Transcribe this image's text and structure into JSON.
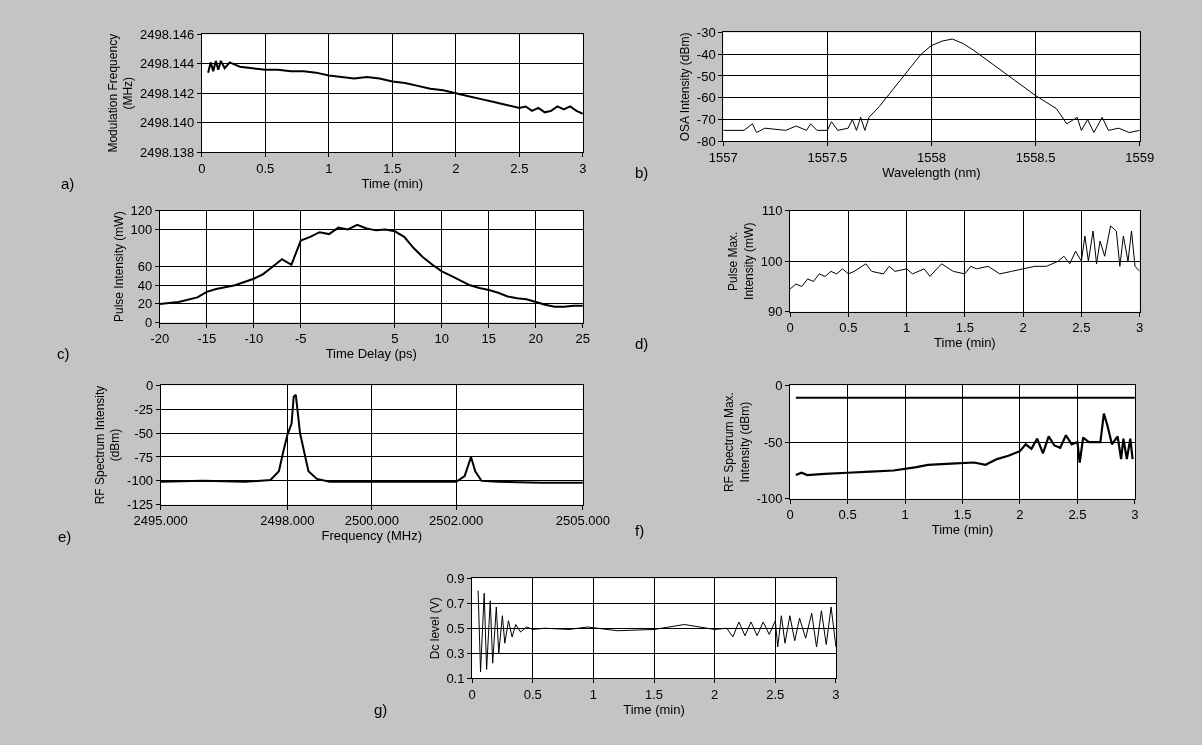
{
  "chart_data": [
    {
      "type": "line",
      "xlabel": "Time (min)",
      "ylabel": "Modulation Frequency\n(MHz)",
      "annotations": [
        "a)"
      ],
      "grid": true,
      "color": "#000000",
      "x": [
        0.05,
        0.07,
        0.09,
        0.11,
        0.13,
        0.15,
        0.18,
        0.22,
        0.3,
        0.4,
        0.5,
        0.6,
        0.7,
        0.8,
        0.9,
        1.0,
        1.1,
        1.2,
        1.3,
        1.4,
        1.5,
        1.6,
        1.7,
        1.8,
        1.9,
        2.0,
        2.1,
        2.2,
        2.3,
        2.4,
        2.5,
        2.55,
        2.6,
        2.65,
        2.7,
        2.75,
        2.8,
        2.85,
        2.9,
        2.95,
        3
      ],
      "values": [
        2498.1434,
        2498.1441,
        2498.1435,
        2498.1442,
        2498.1436,
        2498.1442,
        2498.1437,
        2498.1441,
        2498.1438,
        2498.1437,
        2498.1436,
        2498.1436,
        2498.1435,
        2498.1435,
        2498.1434,
        2498.1432,
        2498.1431,
        2498.143,
        2498.1431,
        2498.143,
        2498.1428,
        2498.1427,
        2498.1425,
        2498.1423,
        2498.1422,
        2498.142,
        2498.1418,
        2498.1416,
        2498.1414,
        2498.1412,
        2498.141,
        2498.1411,
        2498.1408,
        2498.141,
        2498.1407,
        2498.1408,
        2498.1411,
        2498.1409,
        2498.1411,
        2498.1408,
        2498.1406
      ],
      "xlim": [
        0,
        3
      ],
      "xticks": [
        0,
        0.5,
        1,
        1.5,
        2,
        2.5,
        3
      ],
      "ylim": [
        2498.138,
        2498.146
      ],
      "yticks": [
        2498.138,
        {
          "value": 2498.14,
          "label": "2498.140"
        },
        2498.142,
        2498.144,
        2498.146
      ]
    },
    {
      "type": "line",
      "xlabel": "Wavelength (nm)",
      "ylabel": "OSA Intensity (dBm)",
      "annotations": [
        "b)"
      ],
      "grid": true,
      "color": "#000000",
      "x": [
        1557,
        1557.1,
        1557.14,
        1557.16,
        1557.2,
        1557.3,
        1557.35,
        1557.4,
        1557.42,
        1557.45,
        1557.5,
        1557.52,
        1557.55,
        1557.6,
        1557.62,
        1557.64,
        1557.66,
        1557.68,
        1557.7,
        1557.75,
        1557.8,
        1557.85,
        1557.9,
        1557.95,
        1558,
        1558.05,
        1558.1,
        1558.15,
        1558.2,
        1558.3,
        1558.4,
        1558.5,
        1558.6,
        1558.65,
        1558.7,
        1558.72,
        1558.75,
        1558.78,
        1558.82,
        1558.85,
        1558.9,
        1558.95,
        1559
      ],
      "values": [
        -75,
        -75,
        -72,
        -76,
        -74,
        -75,
        -73,
        -75,
        -72,
        -75,
        -75,
        -71,
        -75,
        -74,
        -70,
        -75,
        -69,
        -75,
        -69,
        -64,
        -58,
        -52,
        -46,
        -40,
        -36,
        -34,
        -33,
        -35,
        -38,
        -45,
        -52,
        -59,
        -65,
        -72,
        -69,
        -75,
        -70,
        -76,
        -69,
        -75,
        -74,
        -76,
        -75
      ],
      "xlim": [
        1557,
        1559
      ],
      "xticks": [
        1557,
        1557.5,
        1558,
        1558.5,
        1559
      ],
      "ylim": [
        -80,
        -30
      ],
      "yticks": [
        -80,
        -70,
        -60,
        -50,
        -40,
        -30
      ]
    },
    {
      "type": "line",
      "xlabel": "Time Delay (ps)",
      "ylabel": "Pulse Intensity (mW)",
      "annotations": [
        "c)"
      ],
      "grid": true,
      "color": "#000000",
      "x": [
        -20,
        -18,
        -16,
        -15,
        -14,
        -12,
        -10,
        -9,
        -8,
        -7,
        -6,
        -5,
        -4,
        -3,
        -2,
        -1,
        0,
        1,
        2,
        3,
        4,
        5,
        6,
        7,
        8,
        9,
        10,
        11,
        12,
        13,
        14,
        15,
        16,
        17,
        18,
        19,
        20,
        21,
        22,
        23,
        24,
        25
      ],
      "values": [
        20,
        22,
        27,
        33,
        36,
        40,
        47,
        52,
        60,
        68,
        62,
        88,
        92,
        97,
        95,
        102,
        100,
        105,
        101,
        99,
        100,
        98,
        92,
        80,
        70,
        62,
        55,
        50,
        45,
        40,
        37,
        35,
        32,
        28,
        26,
        25,
        22,
        19,
        17,
        17,
        18,
        18
      ],
      "xlim": [
        -20,
        25
      ],
      "xticks": [
        -20,
        -15,
        -10,
        -5,
        5,
        10,
        15,
        20,
        25
      ],
      "ylim": [
        0,
        120
      ],
      "yticks": [
        0,
        20,
        40,
        60,
        100,
        120
      ]
    },
    {
      "type": "line",
      "xlabel": "Time (min)",
      "ylabel": "Pulse Max.\nIntensity (mW)",
      "annotations": [
        "d)"
      ],
      "grid": true,
      "color": "#000000",
      "x": [
        0,
        0.05,
        0.1,
        0.15,
        0.2,
        0.25,
        0.3,
        0.35,
        0.4,
        0.45,
        0.5,
        0.55,
        0.65,
        0.7,
        0.8,
        0.85,
        0.9,
        1.0,
        1.05,
        1.15,
        1.2,
        1.3,
        1.4,
        1.5,
        1.55,
        1.6,
        1.7,
        1.8,
        1.9,
        2.0,
        2.1,
        2.2,
        2.3,
        2.35,
        2.4,
        2.45,
        2.5,
        2.53,
        2.56,
        2.6,
        2.63,
        2.66,
        2.7,
        2.75,
        2.8,
        2.83,
        2.86,
        2.9,
        2.93,
        2.96,
        3
      ],
      "values": [
        94.5,
        95.5,
        95,
        96.5,
        96,
        97.5,
        97,
        98,
        97.5,
        98.5,
        97.5,
        98,
        99.5,
        98,
        97.5,
        99,
        98,
        98.5,
        97.5,
        98.5,
        97,
        99.5,
        98,
        97.5,
        99,
        98.5,
        99,
        97.5,
        98,
        98.5,
        99,
        99,
        100,
        101,
        99.5,
        102,
        100,
        105,
        100,
        106,
        99.5,
        104,
        101,
        107,
        106,
        99,
        105,
        100,
        106,
        99,
        98
      ],
      "xlim": [
        0,
        3
      ],
      "xticks": [
        0,
        0.5,
        1,
        1.5,
        2,
        2.5,
        3
      ],
      "ylim": [
        90,
        110
      ],
      "yticks": [
        90,
        100,
        110
      ]
    },
    {
      "type": "line",
      "xlabel": "Frequency (MHz)",
      "ylabel": "RF Spectrum Intensity\n(dBm)",
      "annotations": [
        "e)"
      ],
      "grid": true,
      "color": "#000000",
      "x": [
        2495,
        2496,
        2497,
        2497.6,
        2497.8,
        2497.9,
        2498,
        2498.1,
        2498.15,
        2498.2,
        2498.25,
        2498.3,
        2498.4,
        2498.5,
        2498.7,
        2499,
        2500,
        2501,
        2502,
        2502.2,
        2502.35,
        2502.45,
        2502.6,
        2503,
        2504,
        2505
      ],
      "values": [
        -101,
        -100,
        -101,
        -99,
        -90,
        -70,
        -52,
        -40,
        -12,
        -10,
        -30,
        -50,
        -70,
        -90,
        -98,
        -101,
        -101,
        -101,
        -101,
        -95,
        -75,
        -90,
        -100,
        -101,
        -102,
        -102
      ],
      "xlim": [
        2495,
        2505
      ],
      "xticks": [
        {
          "value": 2495,
          "label": "2495.000"
        },
        {
          "value": 2498,
          "label": "2498.000"
        },
        {
          "value": 2500,
          "label": "2500.000"
        },
        {
          "value": 2502,
          "label": "2502.000"
        },
        {
          "value": 2505,
          "label": "2505.000"
        }
      ],
      "ylim": [
        -125,
        0
      ],
      "yticks": [
        -125,
        -100,
        -75,
        -50,
        -25,
        0
      ]
    },
    {
      "type": "line",
      "xlabel": "Time (min)",
      "ylabel": "RF Spectrum Max.\nIntensity (dBm)",
      "annotations": [
        "f)"
      ],
      "grid": true,
      "series": [
        {
          "color": "#000000",
          "x": [
            0.05,
            0.1,
            0.15,
            0.3,
            0.5,
            0.7,
            0.9,
            1.1,
            1.2,
            1.4,
            1.6,
            1.7,
            1.8,
            1.9,
            2.0,
            2.05,
            2.1,
            2.15,
            2.2,
            2.25,
            2.3,
            2.35,
            2.4,
            2.45,
            2.5,
            2.52,
            2.55,
            2.6,
            2.65,
            2.7,
            2.73,
            2.76,
            2.8,
            2.85,
            2.88,
            2.9,
            2.93,
            2.96,
            2.98
          ],
          "values": [
            -79,
            -77,
            -79,
            -78,
            -77,
            -76,
            -75,
            -72,
            -70,
            -69,
            -68,
            -70,
            -65,
            -62,
            -58,
            -52,
            -56,
            -47,
            -60,
            -45,
            -53,
            -55,
            -44,
            -52,
            -50,
            -68,
            -46,
            -50,
            -50,
            -50,
            -25,
            -35,
            -52,
            -45,
            -65,
            -47,
            -65,
            -47,
            -65
          ]
        },
        {
          "color": "#000000",
          "x": [
            0.05,
            3
          ],
          "values": [
            -11,
            -11
          ]
        }
      ],
      "xlim": [
        0,
        3
      ],
      "xticks": [
        0,
        0.5,
        1,
        1.5,
        2,
        2.5,
        3
      ],
      "ylim": [
        -100,
        0
      ],
      "yticks": [
        -100,
        -50,
        0
      ]
    },
    {
      "type": "line",
      "xlabel": "Time (min)",
      "ylabel": "Dc level (V)",
      "annotations": [
        "g)"
      ],
      "grid": true,
      "color": "#000000",
      "x": [
        0.05,
        0.07,
        0.1,
        0.12,
        0.15,
        0.17,
        0.2,
        0.22,
        0.25,
        0.27,
        0.3,
        0.33,
        0.36,
        0.4,
        0.45,
        0.5,
        0.6,
        0.8,
        0.95,
        1.2,
        1.5,
        1.75,
        2.0,
        2.1,
        2.15,
        2.2,
        2.25,
        2.3,
        2.35,
        2.4,
        2.45,
        2.5,
        2.52,
        2.55,
        2.58,
        2.62,
        2.66,
        2.7,
        2.75,
        2.8,
        2.84,
        2.88,
        2.92,
        2.96,
        3
      ],
      "values": [
        0.8,
        0.15,
        0.78,
        0.17,
        0.72,
        0.22,
        0.67,
        0.3,
        0.6,
        0.38,
        0.56,
        0.43,
        0.53,
        0.47,
        0.51,
        0.49,
        0.5,
        0.49,
        0.51,
        0.48,
        0.49,
        0.53,
        0.49,
        0.5,
        0.43,
        0.55,
        0.44,
        0.55,
        0.44,
        0.55,
        0.45,
        0.56,
        0.35,
        0.6,
        0.38,
        0.6,
        0.4,
        0.58,
        0.42,
        0.62,
        0.35,
        0.64,
        0.37,
        0.67,
        0.35
      ],
      "xlim": [
        0,
        3
      ],
      "xticks": [
        0,
        0.5,
        1,
        1.5,
        2,
        2.5,
        3
      ],
      "ylim": [
        0.1,
        0.9
      ],
      "yticks": [
        0.1,
        0.3,
        0.5,
        0.7,
        0.9
      ]
    }
  ]
}
